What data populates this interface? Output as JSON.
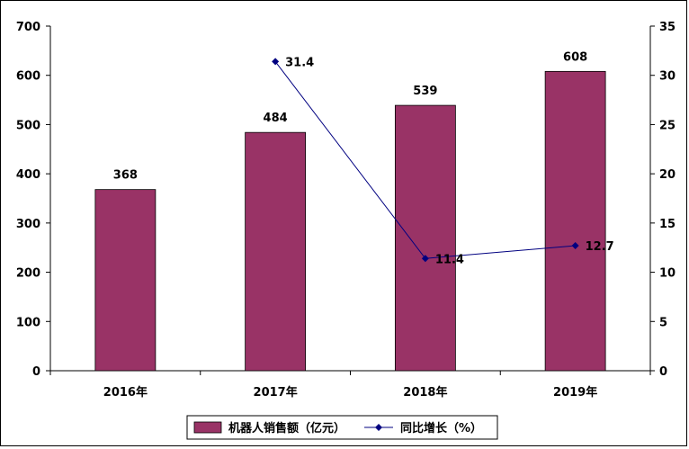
{
  "chart_data": {
    "type": "bar",
    "categories": [
      "2016年",
      "2017年",
      "2018年",
      "2019年"
    ],
    "y_left": {
      "min": 0,
      "max": 700,
      "step": 100
    },
    "y_right": {
      "min": 0,
      "max": 35,
      "step": 5
    },
    "series": [
      {
        "name": "机器人销售额（亿元）",
        "type": "bar",
        "axis": "left",
        "color": "#993366",
        "values": [
          368,
          484,
          539,
          608
        ],
        "labels": [
          "368",
          "484",
          "539",
          "608"
        ]
      },
      {
        "name": "同比增长（%）",
        "type": "line",
        "axis": "right",
        "color": "#000080",
        "values": [
          null,
          31.4,
          11.4,
          12.7
        ],
        "labels": [
          "",
          "31.4",
          "11.4",
          "12.7"
        ]
      }
    ],
    "grid": false,
    "legend": "bottom"
  }
}
